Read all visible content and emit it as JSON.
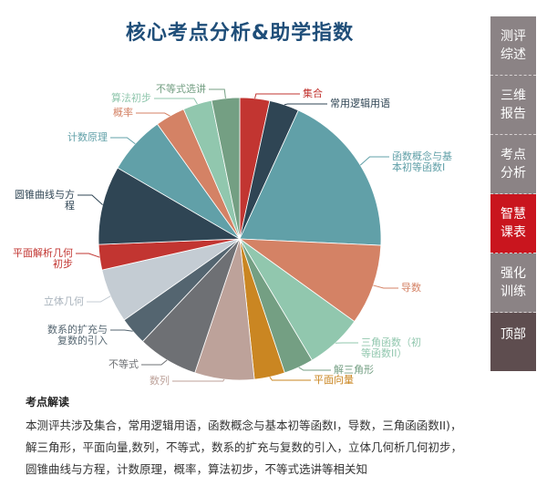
{
  "title": "核心考点分析&助学指数",
  "chart_data": {
    "type": "pie",
    "title": "核心考点分析&助学指数",
    "unit": "percent (estimated from slice angles)",
    "slices": [
      {
        "label": "集合",
        "value": 3.4,
        "color": "#c23531"
      },
      {
        "label": "常用逻辑用语",
        "value": 3.4,
        "color": "#2f4554"
      },
      {
        "label": "函数概念与基\n本初等函数Ⅰ",
        "value": 18.9,
        "color": "#61a0a8"
      },
      {
        "label": "导数",
        "value": 9.2,
        "color": "#d48265"
      },
      {
        "label": "三角函数（初\n等函数II）",
        "value": 6.5,
        "color": "#91c7ae"
      },
      {
        "label": "解三角形",
        "value": 3.4,
        "color": "#749f83"
      },
      {
        "label": "平面向量",
        "value": 3.5,
        "color": "#ca8622"
      },
      {
        "label": "数列",
        "value": 6.8,
        "color": "#bda29a"
      },
      {
        "label": "不等式",
        "value": 6.9,
        "color": "#6e7074"
      },
      {
        "label": "数系的扩充与\n复数的引入",
        "value": 3.2,
        "color": "#546570"
      },
      {
        "label": "立体几何",
        "value": 6.2,
        "color": "#c4ccd3"
      },
      {
        "label": "平面解析几何\n初步",
        "value": 2.9,
        "color": "#c23531"
      },
      {
        "label": "圆锥曲线与方\n程",
        "value": 9.0,
        "color": "#2f4554"
      },
      {
        "label": "计数原理",
        "value": 6.7,
        "color": "#61a0a8"
      },
      {
        "label": "概率",
        "value": 3.4,
        "color": "#d48265"
      },
      {
        "label": "算法初步",
        "value": 3.3,
        "color": "#91c7ae"
      },
      {
        "label": "不等式选讲",
        "value": 3.2,
        "color": "#749f83"
      }
    ]
  },
  "sidebar": {
    "items": [
      {
        "label": "测评\n综述"
      },
      {
        "label": "三维\n报告"
      },
      {
        "label": "考点\n分析"
      },
      {
        "label": "智慧\n课表",
        "active": true
      },
      {
        "label": "强化\n训练"
      },
      {
        "label": "顶部"
      }
    ]
  },
  "analysis": {
    "heading": "考点解读",
    "lines": [
      "本测评共涉及集合，常用逻辑用语，函数概念与基本初等函数I，导数，三角函函数II)，",
      "解三角形，平面向量,数列，不等式，数系的扩充与复数的引入，立体几何析几何初步，",
      "圆锥曲线与方程，计数原理，概率，算法初步，不等式选讲等相关知"
    ]
  }
}
